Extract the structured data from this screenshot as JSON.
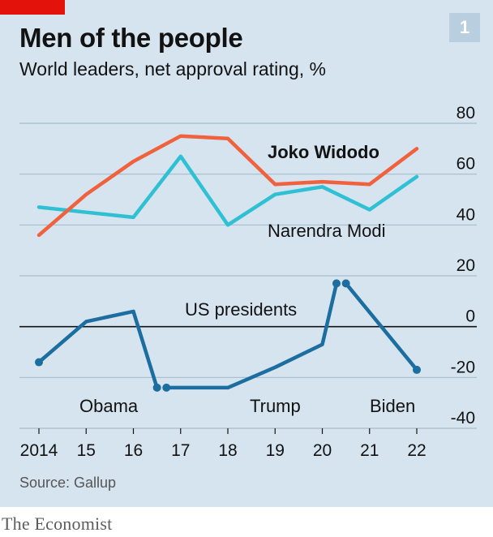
{
  "header": {
    "title": "Men of the people",
    "subtitle": "World leaders, net approval rating, %",
    "chart_number": "1"
  },
  "footer": {
    "source": "Source: Gallup",
    "brand": "The Economist"
  },
  "colors": {
    "accent_red": "#e3120b",
    "widodo": "#f0623e",
    "modi": "#2fc1d3",
    "us": "#1c6da0",
    "background": "#d6e4ef"
  },
  "chart_data": {
    "type": "line",
    "title": "Men of the people",
    "subtitle": "World leaders, net approval rating, %",
    "x": [
      "2014",
      "15",
      "16",
      "17",
      "18",
      "19",
      "20",
      "21",
      "22"
    ],
    "ylim": [
      -40,
      80
    ],
    "yticks": [
      "80",
      "60",
      "40",
      "20",
      "0",
      "-20",
      "-40"
    ],
    "grid": true,
    "series": [
      {
        "name": "Joko Widodo",
        "color": "#f0623e",
        "values": [
          36,
          52,
          65,
          75,
          74,
          56,
          57,
          56,
          70
        ]
      },
      {
        "name": "Narendra Modi",
        "color": "#2fc1d3",
        "values": [
          47,
          45,
          43,
          67,
          40,
          52,
          55,
          46,
          59
        ]
      },
      {
        "name": "US presidents",
        "color": "#1c6da0",
        "values": [
          -14,
          2,
          6,
          -24,
          -24,
          -16,
          -7,
          17,
          -17
        ]
      }
    ],
    "us_transitions": [
      {
        "from_x": 16.5,
        "to_x": 16.7,
        "value": -24
      },
      {
        "from_x": 20.3,
        "to_x": 20.5,
        "value": 17
      }
    ],
    "president_labels": [
      "Obama",
      "Trump",
      "Biden"
    ]
  }
}
